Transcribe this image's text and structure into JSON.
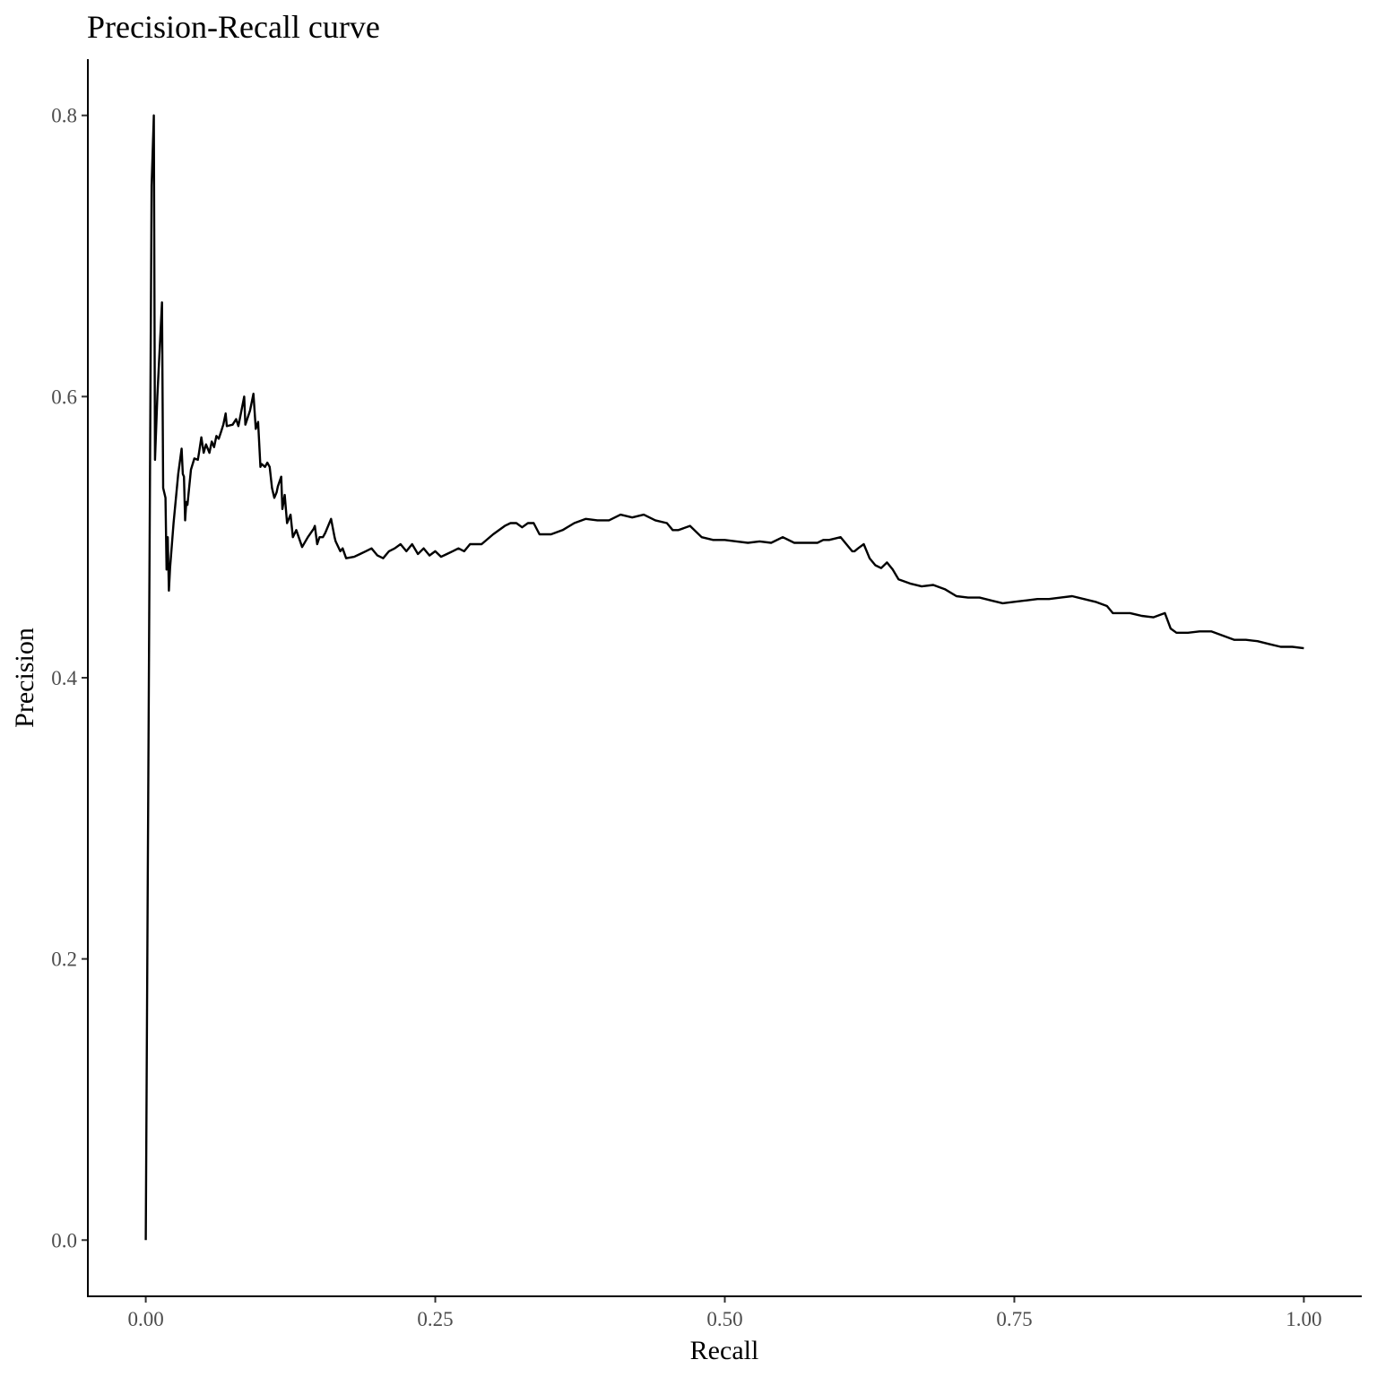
{
  "chart_data": {
    "type": "line",
    "title": "Precision-Recall curve",
    "xlabel": "Recall",
    "ylabel": "Precision",
    "xlim": [
      -0.05,
      1.05
    ],
    "ylim": [
      -0.04,
      0.84
    ],
    "x_ticks": [
      0.0,
      0.25,
      0.5,
      0.75,
      1.0
    ],
    "x_tick_labels": [
      "0.00",
      "0.25",
      "0.50",
      "0.75",
      "1.00"
    ],
    "y_ticks": [
      0.0,
      0.2,
      0.4,
      0.6,
      0.8
    ],
    "y_tick_labels": [
      "0.0",
      "0.2",
      "0.4",
      "0.6",
      "0.8"
    ],
    "grid": false,
    "legend": "none",
    "line_color": "#000000",
    "series": [
      {
        "x": [
          0.0,
          0.005,
          0.007,
          0.008,
          0.01,
          0.014,
          0.015,
          0.017,
          0.018,
          0.019,
          0.02,
          0.021,
          0.024,
          0.028,
          0.031,
          0.032,
          0.033,
          0.034,
          0.035,
          0.036,
          0.039,
          0.042,
          0.045,
          0.046,
          0.048,
          0.05,
          0.052,
          0.055,
          0.057,
          0.059,
          0.061,
          0.063,
          0.065,
          0.067,
          0.069,
          0.07,
          0.075,
          0.078,
          0.08,
          0.085,
          0.086,
          0.09,
          0.093,
          0.095,
          0.097,
          0.099,
          0.1,
          0.103,
          0.105,
          0.107,
          0.109,
          0.111,
          0.113,
          0.114,
          0.117,
          0.118,
          0.12,
          0.122,
          0.125,
          0.127,
          0.13,
          0.135,
          0.14,
          0.145,
          0.146,
          0.148,
          0.15,
          0.153,
          0.155,
          0.16,
          0.163,
          0.164,
          0.168,
          0.17,
          0.173,
          0.18,
          0.185,
          0.19,
          0.195,
          0.2,
          0.205,
          0.21,
          0.215,
          0.22,
          0.225,
          0.23,
          0.235,
          0.24,
          0.245,
          0.25,
          0.255,
          0.26,
          0.265,
          0.27,
          0.275,
          0.28,
          0.29,
          0.3,
          0.31,
          0.315,
          0.32,
          0.325,
          0.33,
          0.335,
          0.34,
          0.345,
          0.35,
          0.36,
          0.37,
          0.38,
          0.39,
          0.4,
          0.41,
          0.42,
          0.43,
          0.44,
          0.45,
          0.455,
          0.46,
          0.47,
          0.48,
          0.49,
          0.5,
          0.51,
          0.52,
          0.53,
          0.54,
          0.55,
          0.56,
          0.57,
          0.58,
          0.585,
          0.59,
          0.6,
          0.61,
          0.612,
          0.615,
          0.62,
          0.625,
          0.63,
          0.635,
          0.64,
          0.645,
          0.65,
          0.66,
          0.67,
          0.68,
          0.69,
          0.7,
          0.71,
          0.72,
          0.73,
          0.74,
          0.75,
          0.76,
          0.77,
          0.78,
          0.79,
          0.8,
          0.81,
          0.82,
          0.83,
          0.835,
          0.84,
          0.85,
          0.86,
          0.87,
          0.88,
          0.885,
          0.89,
          0.9,
          0.91,
          0.92,
          0.93,
          0.94,
          0.95,
          0.96,
          0.97,
          0.98,
          0.99,
          1.0
        ],
        "y": [
          0.0,
          0.75,
          0.8,
          0.555,
          0.6,
          0.667,
          0.535,
          0.528,
          0.477,
          0.5,
          0.462,
          0.478,
          0.51,
          0.545,
          0.563,
          0.545,
          0.543,
          0.512,
          0.525,
          0.523,
          0.548,
          0.556,
          0.555,
          0.56,
          0.571,
          0.56,
          0.566,
          0.56,
          0.568,
          0.564,
          0.572,
          0.57,
          0.575,
          0.58,
          0.588,
          0.579,
          0.58,
          0.584,
          0.579,
          0.6,
          0.58,
          0.59,
          0.602,
          0.577,
          0.582,
          0.55,
          0.552,
          0.55,
          0.553,
          0.55,
          0.535,
          0.528,
          0.532,
          0.536,
          0.543,
          0.52,
          0.53,
          0.51,
          0.516,
          0.5,
          0.505,
          0.493,
          0.5,
          0.506,
          0.508,
          0.495,
          0.5,
          0.5,
          0.503,
          0.513,
          0.5,
          0.497,
          0.49,
          0.492,
          0.485,
          0.486,
          0.488,
          0.49,
          0.492,
          0.487,
          0.485,
          0.49,
          0.492,
          0.495,
          0.49,
          0.495,
          0.488,
          0.492,
          0.487,
          0.49,
          0.486,
          0.488,
          0.49,
          0.492,
          0.49,
          0.495,
          0.495,
          0.502,
          0.508,
          0.51,
          0.51,
          0.507,
          0.51,
          0.51,
          0.502,
          0.502,
          0.502,
          0.505,
          0.51,
          0.513,
          0.512,
          0.512,
          0.516,
          0.514,
          0.516,
          0.512,
          0.51,
          0.505,
          0.505,
          0.508,
          0.5,
          0.498,
          0.498,
          0.497,
          0.496,
          0.497,
          0.496,
          0.5,
          0.496,
          0.496,
          0.496,
          0.498,
          0.498,
          0.5,
          0.49,
          0.49,
          0.492,
          0.495,
          0.485,
          0.48,
          0.478,
          0.482,
          0.477,
          0.47,
          0.467,
          0.465,
          0.466,
          0.463,
          0.458,
          0.457,
          0.457,
          0.455,
          0.453,
          0.454,
          0.455,
          0.456,
          0.456,
          0.457,
          0.458,
          0.456,
          0.454,
          0.451,
          0.446,
          0.446,
          0.446,
          0.444,
          0.443,
          0.446,
          0.435,
          0.432,
          0.432,
          0.433,
          0.433,
          0.43,
          0.427,
          0.427,
          0.426,
          0.424,
          0.422,
          0.422,
          0.421
        ]
      }
    ]
  }
}
